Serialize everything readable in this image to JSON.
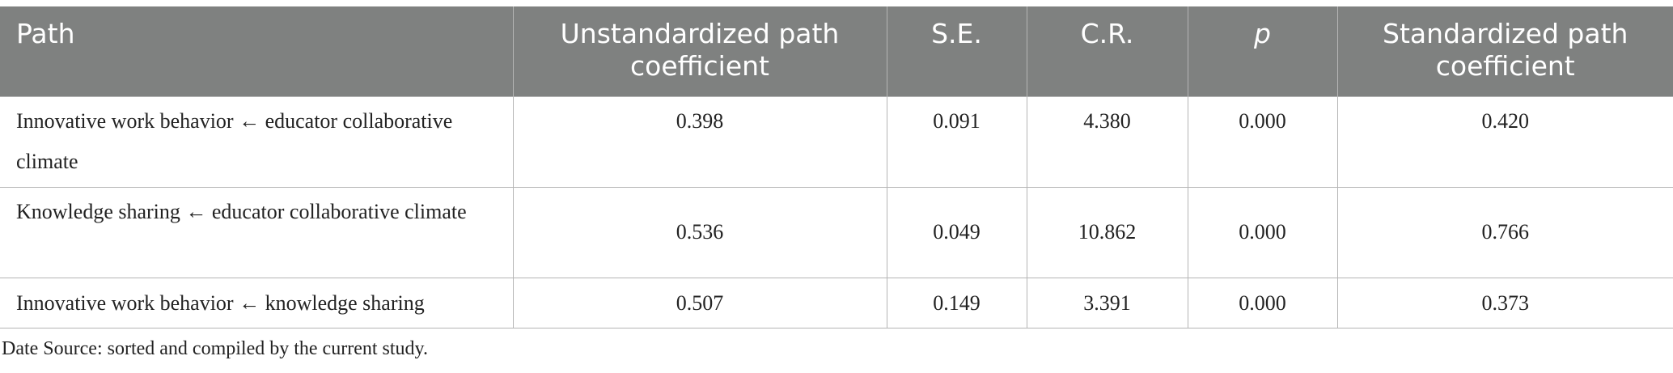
{
  "table": {
    "columns": [
      "Path",
      "Unstandardized path coefficient",
      "S.E.",
      "C.R.",
      "p",
      "Standardized path coefficient"
    ],
    "rows": [
      [
        "Innovative work behavior ← educator collaborative climate",
        "0.398",
        "0.091",
        "4.380",
        "0.000",
        "0.420"
      ],
      [
        "Knowledge sharing ← educator collaborative climate",
        "0.536",
        "0.049",
        "10.862",
        "0.000",
        "0.766"
      ],
      [
        "Innovative work behavior ← knowledge sharing",
        "0.507",
        "0.149",
        "3.391",
        "0.000",
        "0.373"
      ]
    ]
  },
  "footnote": "Date Source: sorted and compiled by the current study."
}
